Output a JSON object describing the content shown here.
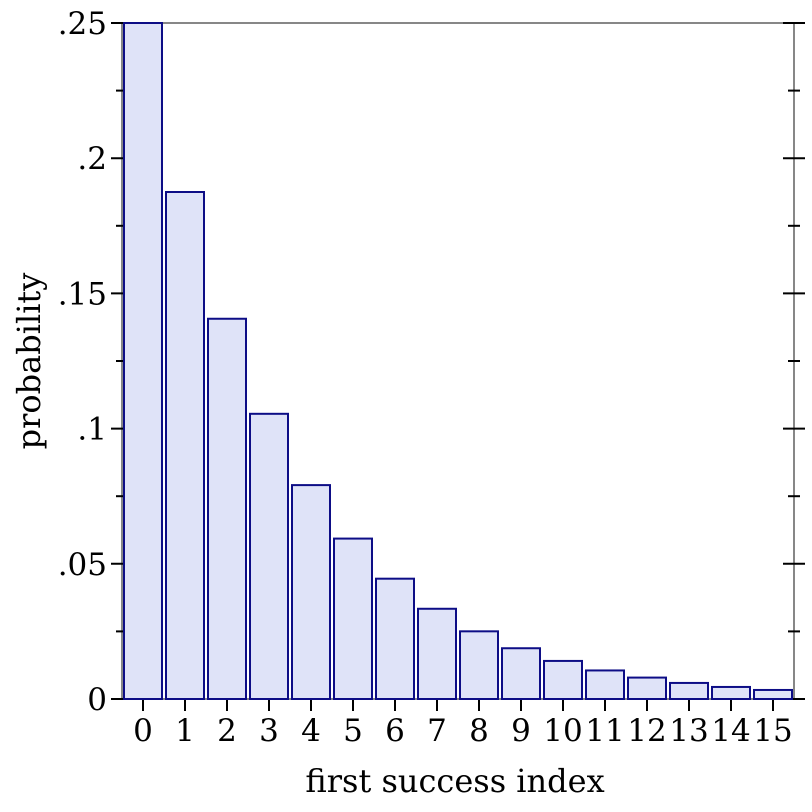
{
  "figure": {
    "background": "#ffffff",
    "frame_color": "#878787",
    "tick_color": "#000000",
    "text_color": "#000000"
  },
  "chart_data": {
    "type": "bar",
    "title": "",
    "xlabel": "first success index",
    "ylabel": "probability",
    "categories": [
      "0",
      "1",
      "2",
      "3",
      "4",
      "5",
      "6",
      "7",
      "8",
      "9",
      "10",
      "11",
      "12",
      "13",
      "14",
      "15"
    ],
    "values": [
      0.25,
      0.1875,
      0.140625,
      0.105469,
      0.079102,
      0.059326,
      0.044495,
      0.033371,
      0.025028,
      0.018771,
      0.014078,
      0.010559,
      0.007919,
      0.005939,
      0.004454,
      0.003341
    ],
    "ylim": [
      0,
      0.25
    ],
    "y_major_ticks": {
      "values": [
        0,
        0.05,
        0.1,
        0.15,
        0.2,
        0.25
      ],
      "labels": [
        "0",
        ".05",
        ".1",
        ".15",
        ".2",
        ".25"
      ]
    },
    "y_minor_tick_values": [
      0.025,
      0.075,
      0.125,
      0.175,
      0.225
    ],
    "grid": false,
    "legend": "none",
    "bar_fill": "#dfe3f8",
    "bar_stroke": "#0d0d86"
  }
}
